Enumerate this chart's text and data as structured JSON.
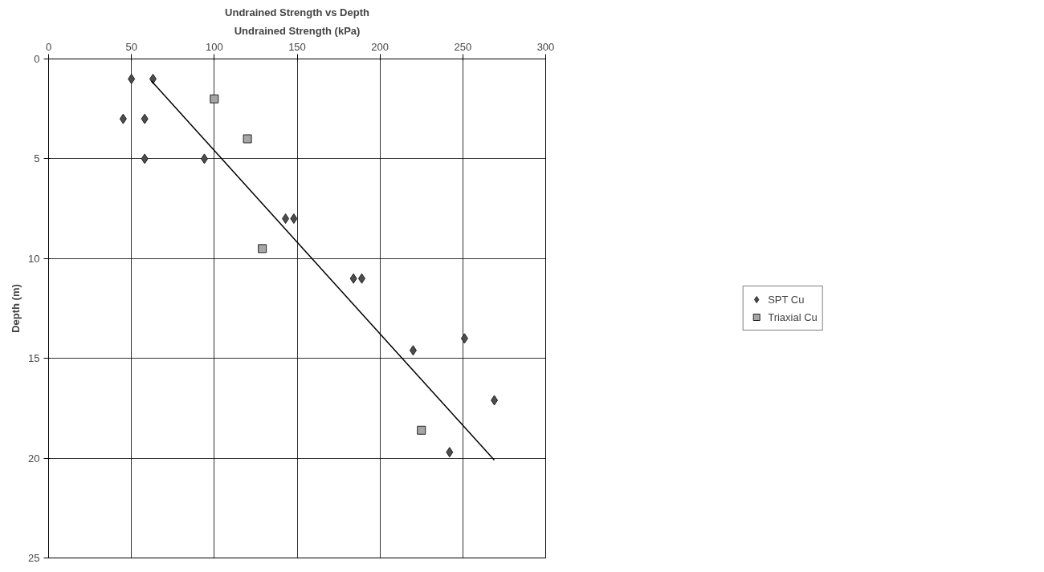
{
  "chart_data": {
    "type": "scatter",
    "title": "Undrained Strength vs Depth",
    "xlabel": "Undrained Strength (kPa)",
    "ylabel": "Depth (m)",
    "xlim": [
      0,
      300
    ],
    "xticks": [
      0,
      50,
      100,
      150,
      200,
      250,
      300
    ],
    "ylim": [
      25,
      0
    ],
    "yticks": [
      0,
      5,
      10,
      15,
      20,
      25
    ],
    "grid": true,
    "legend": "right",
    "series": [
      {
        "name": "SPT Cu",
        "marker": "diamond",
        "color": "#4d4d4d",
        "x": [
          50,
          63,
          45,
          58,
          58,
          94,
          143,
          148,
          184,
          189,
          220,
          251,
          269,
          242
        ],
        "values": [
          1,
          1,
          3,
          3,
          5,
          5,
          8,
          8,
          11,
          11,
          14.6,
          14,
          17.1,
          19.7
        ]
      },
      {
        "name": "Triaxial Cu",
        "marker": "square",
        "color": "#a6a6a6",
        "x": [
          100,
          120,
          129,
          225
        ],
        "values": [
          2,
          4,
          9.5,
          18.6
        ]
      },
      {
        "type": "line",
        "marker": "none",
        "color": "#000000",
        "x": [
          62,
          269
        ],
        "values": [
          1.1,
          20.1
        ]
      }
    ]
  }
}
